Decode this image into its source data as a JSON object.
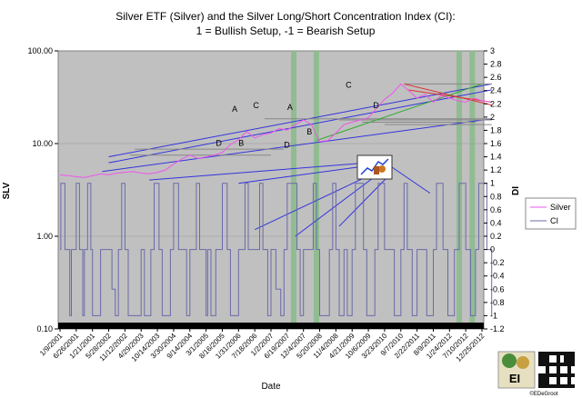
{
  "chart_data": {
    "type": "line",
    "title": "Silver ETF (Silver) and the Silver Long/Short Concentration Index (CI):",
    "subtitle": "1 = Bullish Setup, -1 = Bearish Setup",
    "xlabel": "Date",
    "ylabel_left": "SLV",
    "ylabel_right": "DI",
    "y_left": {
      "scale": "log",
      "ticks": [
        "0.10",
        "1.00",
        "10.00",
        "100.00"
      ],
      "range": [
        0.1,
        100
      ]
    },
    "y_right": {
      "range": [
        -1.2,
        3.0
      ],
      "ticks": [
        "-1.2",
        "-1",
        "-0.8",
        "-0.6",
        "-0.4",
        "-0.2",
        "0",
        "0.2",
        "0.4",
        "0.6",
        "0.8",
        "1",
        "1.2",
        "1.4",
        "1.6",
        "1.8",
        "2",
        "2.2",
        "2.4",
        "2.6",
        "2.8",
        "3"
      ]
    },
    "x_ticks": [
      "1/9/2001",
      "6/26/2001",
      "1/21/2001",
      "5/28/2002",
      "11/12/2002",
      "4/29/2003",
      "10/14/2003",
      "3/30/2004",
      "9/14/2004",
      "3/1/2005",
      "8/16/2005",
      "1/31/2006",
      "7/18/2006",
      "1/2/2007",
      "6/19/2007",
      "12/4/2007",
      "5/20/2008",
      "11/4/2008",
      "4/21/2009",
      "10/6/2009",
      "3/23/2010",
      "9/7/2010",
      "2/22/2011",
      "8/9/2011",
      "1/24/2012",
      "7/10/2012",
      "12/25/2012"
    ],
    "legend": {
      "position": "right",
      "entries": [
        "Silver",
        "CI"
      ]
    },
    "series": [
      {
        "name": "Silver",
        "axis": "left",
        "color": "#ee55ee",
        "x": [
          0,
          0.5,
          1,
          1.5,
          2,
          2.5,
          3,
          3.5,
          4,
          4.5,
          5,
          5.5,
          6,
          6.5,
          7,
          7.5,
          8,
          8.5,
          9,
          9.5,
          10,
          10.5,
          11,
          11.5,
          12,
          12.5,
          13,
          13.5,
          14,
          14.5,
          15,
          15.5,
          16,
          16.5,
          17,
          17.5,
          18,
          18.5,
          19,
          19.5,
          20,
          20.5,
          21,
          21.5,
          22,
          22.5,
          23,
          23.5,
          24,
          24.5,
          25,
          25.5,
          26,
          26.5
        ],
        "values": [
          4.6,
          4.5,
          4.4,
          4.3,
          4.5,
          4.7,
          4.6,
          4.8,
          4.9,
          5.0,
          4.8,
          4.7,
          4.9,
          5.2,
          6.0,
          6.8,
          7.5,
          6.9,
          7.2,
          7.5,
          8.0,
          9.8,
          11.0,
          13.5,
          11.5,
          12.5,
          13.0,
          14.5,
          14.0,
          16.0,
          18.0,
          16.0,
          10.5,
          10.8,
          13.0,
          16.0,
          17.0,
          18.0,
          19.0,
          24.0,
          30.0,
          35.0,
          44.0,
          37.0,
          31.0,
          34.0,
          28.0,
          33.0,
          31.0,
          29.0,
          28.0,
          31.0,
          29.0,
          28.0
        ]
      },
      {
        "name": "CI",
        "axis": "right",
        "color": "#6a6aaa",
        "x": [
          0,
          0.05,
          0.3,
          0.6,
          0.7,
          1.0,
          1.2,
          1.4,
          1.5,
          1.7,
          1.9,
          2.0,
          2.5,
          3.0,
          3.2,
          3.4,
          3.6,
          3.8,
          4.0,
          4.2,
          5.0,
          5.2,
          5.6,
          5.8,
          6.1,
          6.3,
          6.8,
          7.0,
          7.3,
          7.6,
          7.8,
          8.0,
          8.4,
          8.6,
          9.0,
          9.1,
          9.3,
          9.6,
          10.0,
          10.3,
          10.5,
          11.0,
          11.4,
          11.6,
          12.1,
          12.3,
          12.5,
          12.8,
          13.0,
          13.3,
          13.6,
          13.8,
          14.0,
          14.6,
          14.8,
          15.0,
          15.6,
          15.8,
          16.0,
          16.6,
          16.8,
          17.0,
          17.2,
          17.5,
          17.7,
          18.0,
          18.2,
          18.7,
          18.9,
          19.4,
          19.6,
          20.0,
          20.4,
          20.6,
          21.0,
          21.2,
          21.4,
          21.7,
          22.0,
          22.4,
          22.6,
          23.0,
          23.2,
          23.6,
          23.9,
          24.3,
          24.6,
          25.0,
          25.3,
          25.6,
          25.8,
          26.3,
          26.6
        ],
        "values": [
          0,
          1,
          0,
          -1,
          0,
          1,
          0,
          -1,
          0,
          1,
          0,
          -1,
          0,
          0,
          -0.6,
          -1,
          0,
          1,
          0,
          -1,
          0,
          -1,
          0,
          1,
          0,
          -1,
          0,
          1,
          0,
          0,
          -1,
          0,
          1,
          0,
          -1,
          0,
          -1,
          0,
          1,
          0,
          -1,
          0,
          1,
          0,
          0,
          1,
          0,
          -1,
          0,
          -0.6,
          -1,
          0,
          1,
          0,
          -1,
          0,
          1,
          0,
          -1,
          0,
          1,
          0,
          -1,
          0,
          -1,
          0,
          1,
          0,
          -1,
          0,
          1,
          0,
          0,
          -1,
          0,
          1,
          0,
          -1,
          0,
          0,
          -1,
          0,
          1,
          0,
          -1,
          0,
          1,
          0,
          -1,
          0,
          1,
          0,
          -1
        ]
      }
    ],
    "annotations": [
      "A",
      "C",
      "D",
      "B",
      "A",
      "D",
      "B",
      "C",
      "D"
    ],
    "green_bands": [
      14.4,
      15.8,
      24.6,
      25.4
    ],
    "colors": {
      "plot_bg": "#c0c0c0",
      "trend": "#3333dd",
      "support": "#888888",
      "red_trend": "#dd3333",
      "green_trend": "#33aa33",
      "band": "#88bb88"
    }
  },
  "footer": {
    "copyright": "©EDeGroot",
    "logo_letters": "EI"
  }
}
